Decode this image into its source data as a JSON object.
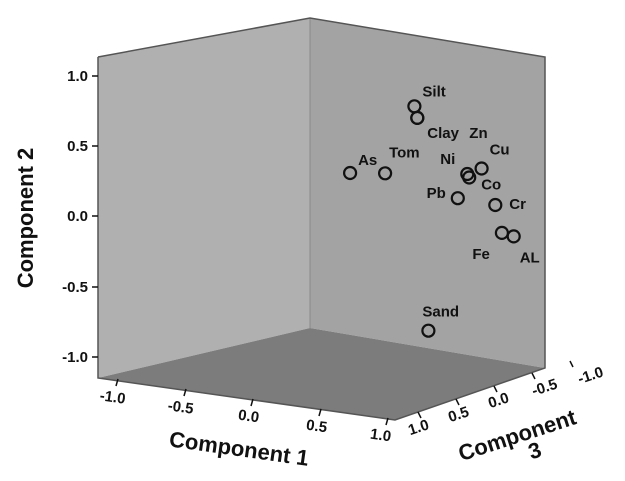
{
  "chart_data": {
    "type": "scatter",
    "subtype": "3d-scatter",
    "title": "",
    "axes": {
      "x": {
        "label": "Component 1",
        "range": [
          -1.0,
          1.0
        ],
        "ticks": [
          "-1.0",
          "-0.5",
          "0.0",
          "0.5",
          "1.0"
        ]
      },
      "y": {
        "label": "Component 2",
        "range": [
          -1.0,
          1.0
        ],
        "ticks": [
          "-1.0",
          "-0.5",
          "0.0",
          "0.5",
          "1.0"
        ]
      },
      "z": {
        "label": "Component 3",
        "range": [
          -1.0,
          1.0
        ],
        "ticks": [
          "1.0",
          "0.5",
          "0.0",
          "-0.5",
          "-1.0"
        ]
      }
    },
    "grid": false,
    "background_walls": {
      "back": "#b3b3b3",
      "side": "#9e9e9e",
      "floor": "#7a7a7a"
    },
    "points": [
      {
        "label": "Silt",
        "x": 0.78,
        "y": 0.87,
        "z": 0.05
      },
      {
        "label": "Clay",
        "x": 0.8,
        "y": 0.79,
        "z": 0.05
      },
      {
        "label": "Zn",
        "x": 0.8,
        "y": 0.79,
        "z": 0.05
      },
      {
        "label": "Cu",
        "x": 0.92,
        "y": 0.58,
        "z": -0.45
      },
      {
        "label": "Ni",
        "x": 0.92,
        "y": 0.5,
        "z": -0.3
      },
      {
        "label": "Co",
        "x": 0.92,
        "y": 0.48,
        "z": -0.32
      },
      {
        "label": "Tom",
        "x": 0.55,
        "y": 0.37,
        "z": 0.02
      },
      {
        "label": "As",
        "x": 0.3,
        "y": 0.34,
        "z": 0.02
      },
      {
        "label": "Pb",
        "x": 0.92,
        "y": 0.3,
        "z": -0.2
      },
      {
        "label": "Cr",
        "x": 0.95,
        "y": 0.35,
        "z": -0.55
      },
      {
        "label": "Fe",
        "x": 0.95,
        "y": 0.17,
        "z": -0.62
      },
      {
        "label": "AL",
        "x": 0.98,
        "y": 0.17,
        "z": -0.7
      },
      {
        "label": "Sand",
        "x": 0.88,
        "y": -0.72,
        "z": 0.05
      }
    ]
  }
}
